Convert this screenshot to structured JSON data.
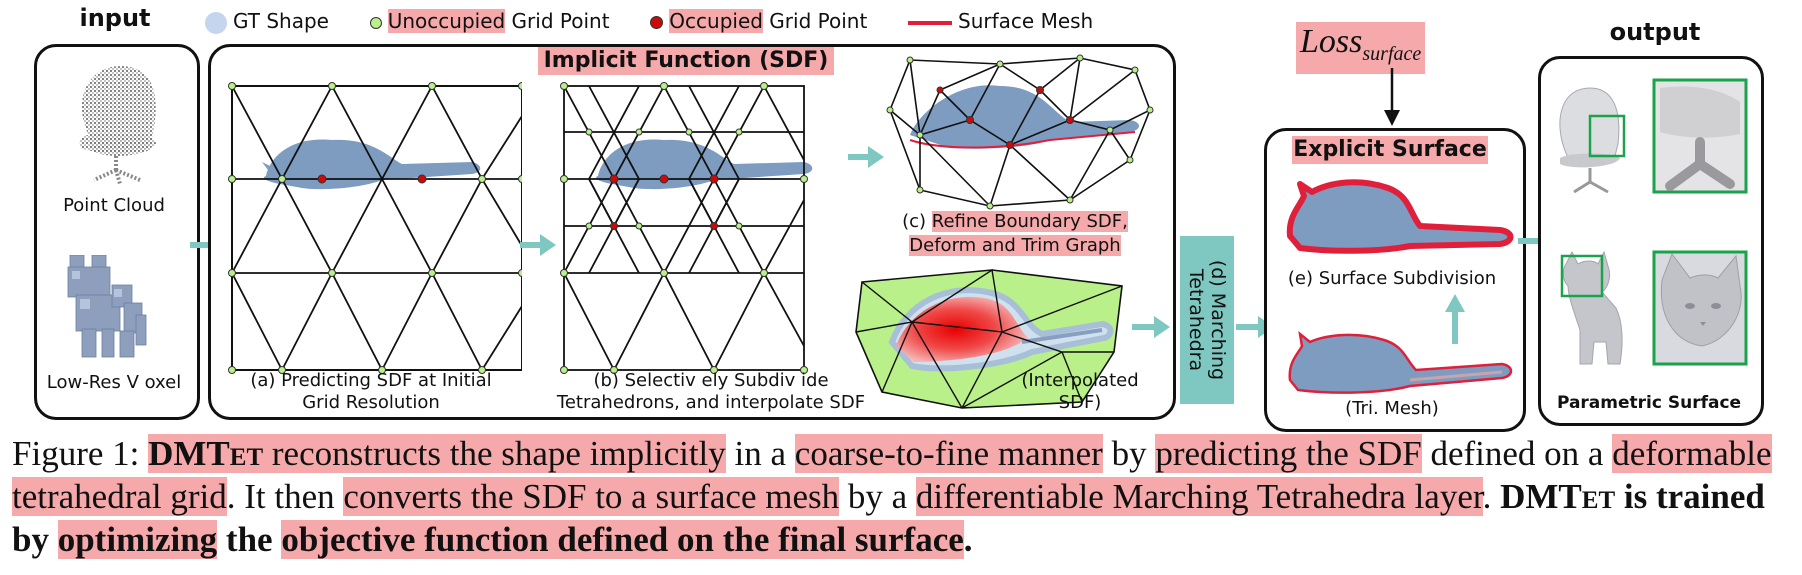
{
  "colors": {
    "highlight": "#f5a9ab",
    "shape": "#7d9cc0",
    "arrow": "#7fc8c2",
    "grid_unoccupied": "#b9f08a",
    "grid_occupied": "#cc0a0a",
    "surface_mesh": "#e0203a",
    "march_box": "#7fc8c2",
    "green_frame": "#1aa34a"
  },
  "legend": {
    "gt_shape": "GT Shape",
    "unoccupied_hl": "Unoccupied",
    "unoccupied_rest": " Grid Point",
    "occupied_hl": "Occupied",
    "occupied_rest": " Grid Point",
    "surface_mesh": "Surface Mesh"
  },
  "input": {
    "title": "input",
    "point_cloud": "Point Cloud",
    "voxel": "Low-Res V oxel"
  },
  "implicit": {
    "title": "Implicit Function (SDF)",
    "a_line1": "(a) Predicting SDF at Initial",
    "a_line2": "Grid Resolution",
    "b_line1": "(b) Selectiv ely Subdiv ide",
    "b_line2": "Tetrahedrons, and interpolate SDF",
    "c_prefix": "(c) ",
    "c_hl1": "Refine Boundary SDF,",
    "c_hl2": "Deform and Trim Graph",
    "interp_line1": "(Interpolated",
    "interp_line2": "SDF)"
  },
  "marching": {
    "line1": "(d) Marching",
    "line2": "Tetrahedra"
  },
  "loss": {
    "base": "Loss",
    "sub": "surface"
  },
  "explicit": {
    "title": "Explicit Surface",
    "subdiv": "(e) Surface Subdivision",
    "tri": "(Tri. Mesh)"
  },
  "output": {
    "title": "output",
    "param": "Parametric Surface"
  },
  "caption": {
    "fig": "Figure 1: ",
    "dmtet1": "DMT",
    "dmtet1_sc": "et",
    "t1": " reconstructs the shape implicitly",
    "t2": " in a ",
    "t3": "coarse-to-fine manner",
    "t4": " by ",
    "t5": "predicting the SDF",
    "t6": " defined on a ",
    "t7": "deformable tetrahedral grid",
    "t8": ". It then ",
    "t9": "converts the SDF to a surface mesh",
    "t10": " by a ",
    "t11": "differentiable Marching Tetrahedra layer",
    "t12": ". ",
    "dmtet2": "DMT",
    "dmtet2_sc": "et",
    "t13": " is trained by ",
    "t14": "optimizing",
    "t15": " the ",
    "t16": "objective function defined on the final surface",
    "t17": "."
  }
}
